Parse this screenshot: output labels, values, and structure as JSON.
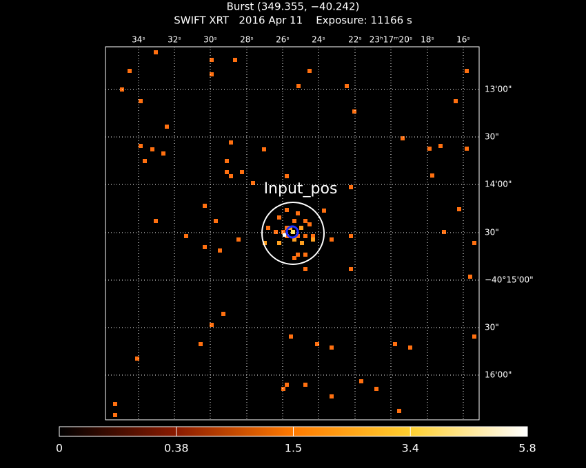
{
  "header": {
    "title": "Burst (349.355, −40.242)",
    "subtitle": "SWIFT XRT   2016 Apr 11    Exposure: 11166 s"
  },
  "top_labels": [
    "34ˢ",
    "32ˢ",
    "30ˢ",
    "28ˢ",
    "26ˢ",
    "24ˢ",
    "22ˢ",
    "23ʰ17ᵐ20ˢ",
    "18ˢ",
    "16ˢ"
  ],
  "right_labels": [
    "13'00\"",
    "30\"",
    "14'00\"",
    "30\"",
    "−40°15'00\"",
    "30\"",
    "16'00\""
  ],
  "annotation": "Input_pos",
  "colorbar_labels": [
    "0",
    "0.38",
    "1.5",
    "3.4",
    "5.8"
  ]
}
